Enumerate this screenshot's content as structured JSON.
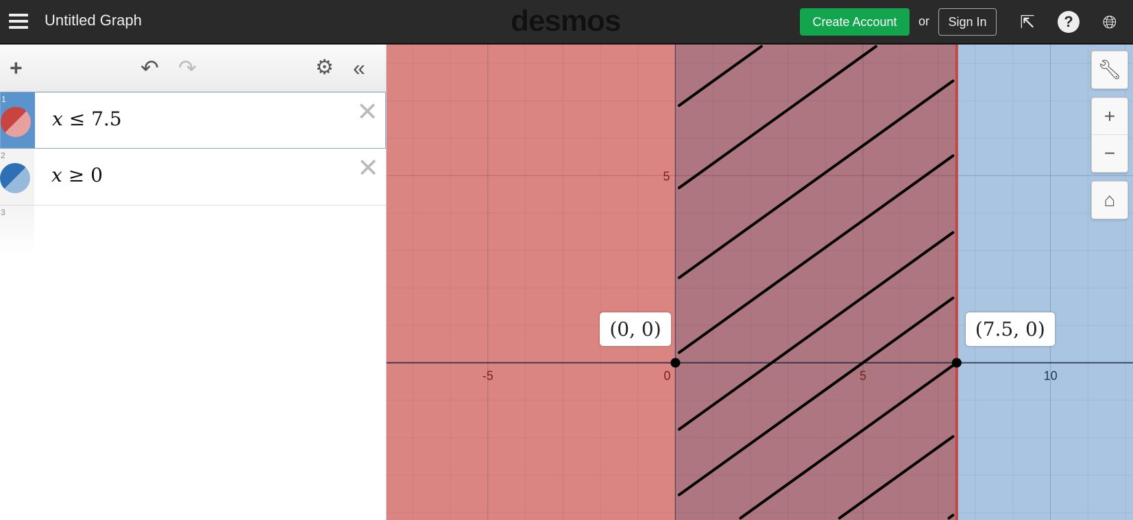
{
  "header": {
    "title": "Untitled Graph",
    "logo": "desmos",
    "create_account": "Create Account",
    "or": "or",
    "sign_in": "Sign In",
    "icons": [
      "menu-icon",
      "share-icon",
      "help-icon",
      "language-globe-icon"
    ]
  },
  "toolbar": {
    "icons": [
      "add-icon",
      "undo-icon",
      "redo-icon",
      "settings-gear-icon",
      "collapse-chevrons-icon"
    ]
  },
  "expressions": [
    {
      "number": "1",
      "var": "x",
      "op": "≤",
      "value": "7.5",
      "color": "#c74440",
      "selected": true
    },
    {
      "number": "2",
      "var": "x",
      "op": "≥",
      "value": "0",
      "color": "#2d70b3",
      "selected": false
    },
    {
      "number": "3"
    }
  ],
  "graph": {
    "x_range": [
      -7.7,
      12.2
    ],
    "y_range": [
      -4.2,
      8.5
    ],
    "x_ticks": [
      "-5",
      "0",
      "5",
      "10"
    ],
    "y_ticks": [
      "5"
    ],
    "regions": {
      "red": "#db8582",
      "blue": "#a9c5e1",
      "overlap": "#ae7680",
      "boundary": "#c74440"
    },
    "points": [
      {
        "label": "(0, 0)",
        "x": 0,
        "y": 0
      },
      {
        "label": "(7.5, 0)",
        "x": 7.5,
        "y": 0
      }
    ],
    "controls": [
      "wrench-icon",
      "zoom-in-icon",
      "zoom-out-icon",
      "home-icon"
    ]
  }
}
